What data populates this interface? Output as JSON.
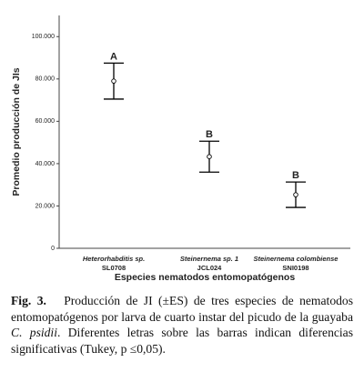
{
  "chart_data": {
    "type": "errorbar",
    "ylabel": "Promedio producción de JIs",
    "xlabel": "Especies nematodos entomopatógenos",
    "categories": [
      "Heterorhabditis sp.",
      "Steinernema sp. 1",
      "Steinernema colombiense"
    ],
    "category_codes": [
      "SL0708",
      "JCL024",
      "SNI0198"
    ],
    "values": [
      79000,
      43300,
      25300
    ],
    "errors": [
      8500,
      7300,
      6000
    ],
    "annotations": [
      "A",
      "B",
      "B"
    ],
    "color": "#000000",
    "ylim": [
      0,
      110000
    ],
    "yticks": [
      0,
      {
        "value": 20000,
        "label": "20.000"
      },
      {
        "value": 40000,
        "label": "40.000"
      },
      {
        "value": 60000,
        "label": "60.000"
      },
      {
        "value": 80000,
        "label": "80.000"
      },
      {
        "value": 100000,
        "label": "100.000"
      }
    ]
  },
  "caption": {
    "label": "Fig. 3.",
    "text": [
      "Producción de JI (±ES) de tres especies de nematodos entomopatógenos por larva de cuarto instar del picudo de la guayaba ",
      "C. psidii",
      ". Diferentes letras sobre las barras indican diferencias significativas (Tukey, p ≤0,05)."
    ]
  }
}
